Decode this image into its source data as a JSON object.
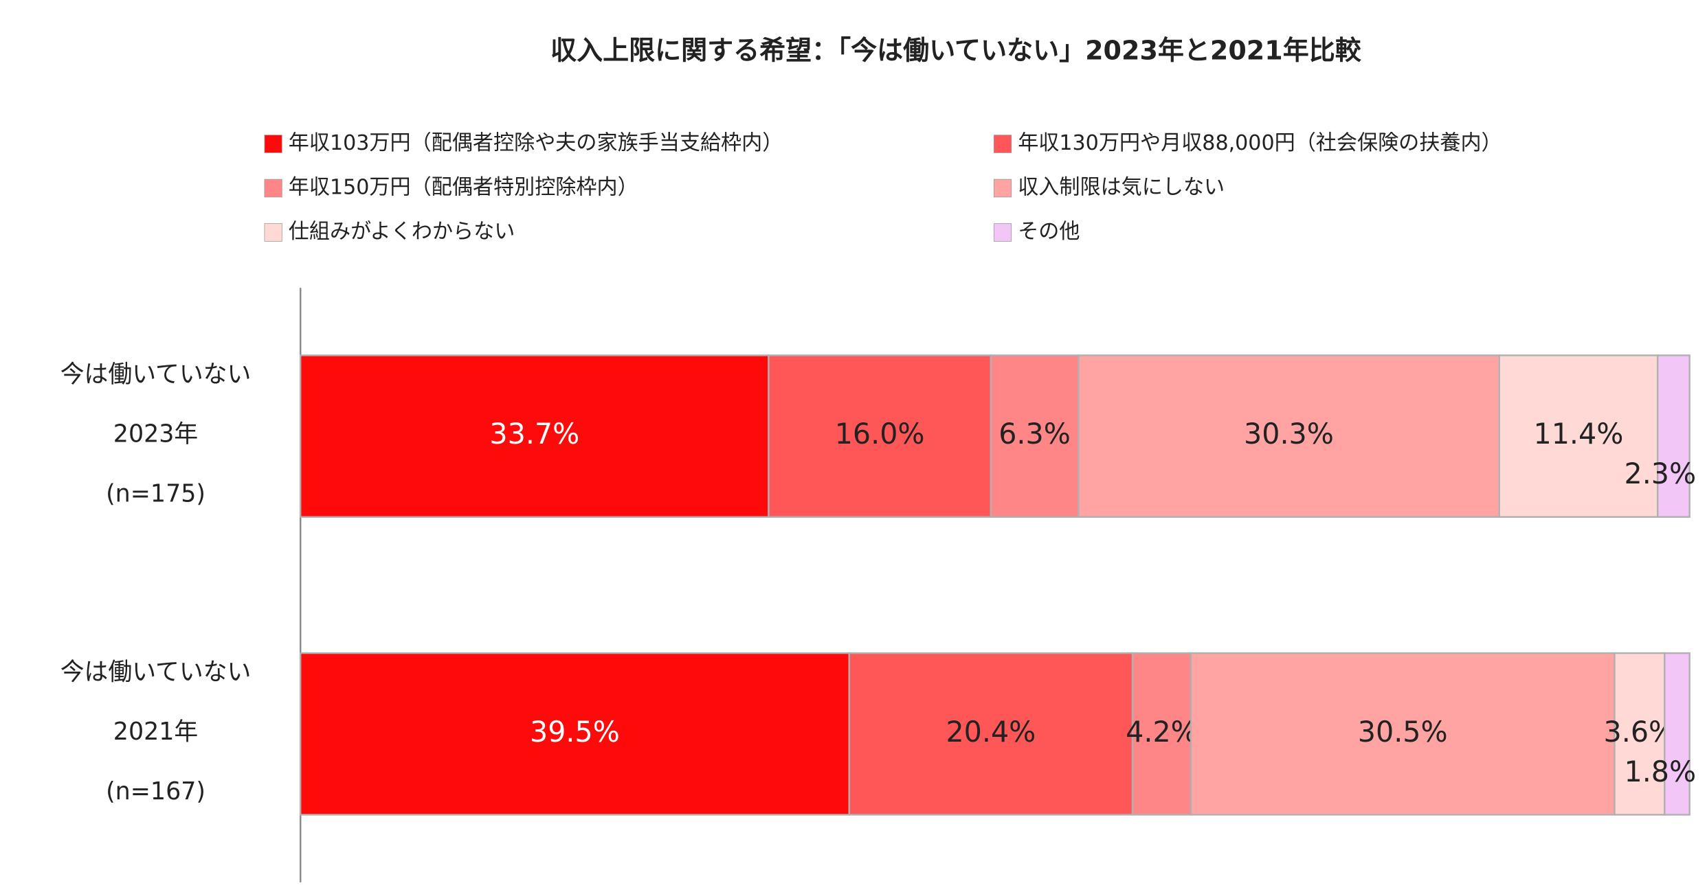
{
  "chart_data": {
    "type": "stacked_bar_horizontal",
    "title": "収入上限に関する希望：「今は働いていない」2023年と2021年比較",
    "categories": [
      [
        "今は働いていない",
        "2023年",
        "(n=175)"
      ],
      [
        "今は働いていない",
        "2021年",
        "(n=167)"
      ]
    ],
    "series": [
      {
        "name": "年収103万円（配偶者控除や夫の家族手当支給枠内）",
        "color": "#ff0a0a",
        "label_color": "#ffffff",
        "values": [
          33.7,
          39.5
        ],
        "value_labels": [
          "33.7%",
          "39.5%"
        ]
      },
      {
        "name": "年収130万円や月収88,000円（社会保険の扶養内）",
        "color": "#ff5757",
        "label_color": "#222222",
        "values": [
          16.0,
          20.4
        ],
        "value_labels": [
          "16.0%",
          "20.4%"
        ]
      },
      {
        "name": "年収150万円（配偶者特別控除枠内）",
        "color": "#ff8686",
        "label_color": "#222222",
        "values": [
          6.3,
          4.2
        ],
        "value_labels": [
          "6.3%",
          "4.2%"
        ]
      },
      {
        "name": "収入制限は気にしない",
        "color": "#ffa3a3",
        "label_color": "#222222",
        "values": [
          30.3,
          30.5
        ],
        "value_labels": [
          "30.3%",
          "30.5%"
        ]
      },
      {
        "name": "仕組みがよくわからない",
        "color": "#ffd9d6",
        "label_color": "#222222",
        "values": [
          11.4,
          3.6
        ],
        "value_labels": [
          "11.4%",
          "3.6%"
        ]
      },
      {
        "name": "その他",
        "color": "#f2c6f7",
        "label_color": "#222222",
        "values": [
          2.3,
          1.8
        ],
        "value_labels": [
          "2.3%",
          "1.8%"
        ]
      }
    ],
    "xlim": [
      0,
      100
    ]
  }
}
